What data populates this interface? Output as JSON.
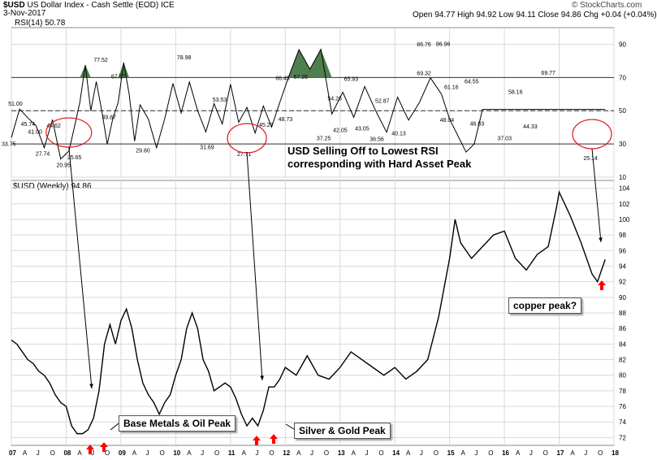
{
  "header": {
    "ticker": "$USD",
    "name": "US Dollar Index - Cash Settle (EOD)",
    "exchange": "ICE",
    "date": "3-Nov-2017",
    "quote": "Open 94.77  High 94.92  Low 94.11  Close 94.86  Chg +0.04 (+0.04%)",
    "watermark": "© StockCharts.com",
    "rsi_label": "RSI(14) 50.78",
    "price_label": "$USD (Weekly) 94.86"
  },
  "annotations": {
    "rsi_note_line1": "USD Selling Off to Lowest RSI",
    "rsi_note_line2": "corresponding with Hard Asset Peak",
    "base_metals": "Base Metals & Oil Peak",
    "silver_gold": "Silver & Gold Peak",
    "copper": "copper peak?"
  },
  "colors": {
    "price_line": "#000000",
    "rsi_line": "#000000",
    "overbought_fill": "#4f7f4f",
    "circle": "#e21c1c",
    "arrow_up": "#ff0000",
    "grid": "#d9d9d9"
  },
  "chart_data": [
    {
      "type": "line",
      "title": "RSI(14) 50.78",
      "ylim": [
        10,
        100
      ],
      "y_ticks": [
        10,
        30,
        50,
        70,
        90
      ],
      "reference_lines": [
        30,
        50,
        70
      ],
      "x": [
        2007.0,
        2007.15,
        2007.3,
        2007.45,
        2007.6,
        2007.75,
        2007.9,
        2008.05,
        2008.15,
        2008.25,
        2008.35,
        2008.45,
        2008.55,
        2008.65,
        2008.75,
        2008.85,
        2008.95,
        2009.05,
        2009.15,
        2009.25,
        2009.35,
        2009.5,
        2009.65,
        2009.8,
        2009.95,
        2010.1,
        2010.25,
        2010.4,
        2010.55,
        2010.7,
        2010.85,
        2011.0,
        2011.15,
        2011.3,
        2011.45,
        2011.6,
        2011.75,
        2011.9,
        2012.05,
        2012.25,
        2012.45,
        2012.65,
        2012.85,
        2013.05,
        2013.25,
        2013.45,
        2013.65,
        2013.85,
        2014.05,
        2014.25,
        2014.45,
        2014.65,
        2014.85,
        2015.0,
        2015.15,
        2015.3,
        2015.45,
        2015.6,
        2015.75,
        2015.9,
        2016.05,
        2016.25,
        2016.45,
        2016.65,
        2016.85,
        2017.0,
        2017.15,
        2017.3,
        2017.45,
        2017.6,
        2017.72,
        2017.84
      ],
      "y": [
        33.75,
        51.0,
        45.74,
        41.0,
        27.74,
        44.62,
        20.95,
        25.65,
        40.0,
        55.0,
        77.52,
        49.87,
        67.57,
        50.0,
        29.8,
        45.0,
        55.0,
        78.98,
        60.0,
        31.69,
        53.53,
        45.0,
        27.71,
        45.27,
        66.45,
        48.73,
        67.26,
        50.0,
        37.25,
        54.26,
        42.05,
        65.93,
        43.05,
        52.0,
        36.56,
        52.87,
        40.13,
        55.0,
        69.32,
        86.76,
        75.0,
        86.96,
        48.04,
        61.16,
        46.03,
        64.55,
        50.0,
        37.03,
        58.16,
        44.33,
        55.0,
        69.77,
        60.0,
        45.0,
        35.0,
        25.14,
        30.0,
        50.78,
        50.78,
        50.78,
        50.78,
        50.78,
        50.78,
        50.78,
        50.78,
        50.78,
        50.78,
        50.78,
        50.78,
        50.78,
        50.78,
        50.78
      ],
      "labels": [
        {
          "x": 2007.0,
          "v": "33.75"
        },
        {
          "x": 2007.12,
          "v": "51.00"
        },
        {
          "x": 2007.35,
          "v": "45.74"
        },
        {
          "x": 2007.48,
          "v": "41.00"
        },
        {
          "x": 2007.62,
          "v": "27.74"
        },
        {
          "x": 2007.82,
          "v": "44.62"
        },
        {
          "x": 2008.0,
          "v": "20.95"
        },
        {
          "x": 2008.2,
          "v": "25.65"
        },
        {
          "x": 2008.68,
          "v": "77.52"
        },
        {
          "x": 2008.83,
          "v": "49.87"
        },
        {
          "x": 2009.0,
          "v": "67.57"
        },
        {
          "x": 2009.45,
          "v": "29.80"
        },
        {
          "x": 2010.2,
          "v": "78.98"
        },
        {
          "x": 2010.62,
          "v": "31.69"
        },
        {
          "x": 2010.85,
          "v": "53.53"
        },
        {
          "x": 2011.3,
          "v": "27.71"
        },
        {
          "x": 2011.7,
          "v": "45.27"
        },
        {
          "x": 2012.0,
          "v": "66.45"
        },
        {
          "x": 2012.05,
          "v": "48.73"
        },
        {
          "x": 2012.33,
          "v": "67.26"
        },
        {
          "x": 2012.75,
          "v": "37.25"
        },
        {
          "x": 2012.95,
          "v": "54.26"
        },
        {
          "x": 2013.05,
          "v": "42.05"
        },
        {
          "x": 2013.25,
          "v": "65.93"
        },
        {
          "x": 2013.45,
          "v": "43.05"
        },
        {
          "x": 2013.82,
          "v": "52.87"
        },
        {
          "x": 2013.72,
          "v": "36.56"
        },
        {
          "x": 2014.12,
          "v": "40.13"
        },
        {
          "x": 2014.58,
          "v": "69.32"
        },
        {
          "x": 2014.58,
          "v": "86.76"
        },
        {
          "x": 2014.93,
          "v": "86.96"
        },
        {
          "x": 2015.08,
          "v": "61.16"
        },
        {
          "x": 2015.0,
          "v": "48.04"
        },
        {
          "x": 2015.45,
          "v": "64.55"
        },
        {
          "x": 2015.55,
          "v": "46.03"
        },
        {
          "x": 2016.25,
          "v": "58.16"
        },
        {
          "x": 2016.05,
          "v": "37.03"
        },
        {
          "x": 2016.52,
          "v": "44.33"
        },
        {
          "x": 2016.85,
          "v": "69.77"
        },
        {
          "x": 2017.62,
          "v": "25.14"
        }
      ]
    },
    {
      "type": "line",
      "title": "$USD (Weekly) 94.86",
      "ylim": [
        71,
        105
      ],
      "y_ticks": [
        72,
        74,
        76,
        78,
        80,
        82,
        84,
        86,
        88,
        90,
        92,
        94,
        96,
        98,
        100,
        102,
        104
      ],
      "x_ticks": [
        "07",
        "A",
        "J",
        "O",
        "08",
        "A",
        "J",
        "O",
        "09",
        "A",
        "J",
        "O",
        "10",
        "A",
        "J",
        "O",
        "11",
        "A",
        "J",
        "O",
        "12",
        "A",
        "J",
        "O",
        "13",
        "A",
        "J",
        "O",
        "14",
        "A",
        "J",
        "O",
        "15",
        "A",
        "J",
        "O",
        "16",
        "A",
        "J",
        "O",
        "17",
        "A",
        "J",
        "O",
        "18"
      ],
      "x": [
        2007.0,
        2007.1,
        2007.2,
        2007.3,
        2007.4,
        2007.5,
        2007.6,
        2007.7,
        2007.8,
        2007.9,
        2008.0,
        2008.1,
        2008.2,
        2008.3,
        2008.4,
        2008.5,
        2008.6,
        2008.7,
        2008.8,
        2008.9,
        2009.0,
        2009.1,
        2009.2,
        2009.3,
        2009.4,
        2009.5,
        2009.6,
        2009.7,
        2009.8,
        2009.9,
        2010.0,
        2010.1,
        2010.2,
        2010.3,
        2010.4,
        2010.5,
        2010.6,
        2010.7,
        2010.8,
        2010.9,
        2011.0,
        2011.1,
        2011.2,
        2011.3,
        2011.4,
        2011.5,
        2011.6,
        2011.7,
        2011.8,
        2011.9,
        2012.0,
        2012.2,
        2012.4,
        2012.6,
        2012.8,
        2013.0,
        2013.2,
        2013.4,
        2013.6,
        2013.8,
        2014.0,
        2014.2,
        2014.4,
        2014.6,
        2014.8,
        2015.0,
        2015.1,
        2015.2,
        2015.4,
        2015.6,
        2015.8,
        2016.0,
        2016.2,
        2016.4,
        2016.6,
        2016.8,
        2016.95,
        2017.0,
        2017.2,
        2017.4,
        2017.6,
        2017.7,
        2017.84
      ],
      "y": [
        84.5,
        84.0,
        83.0,
        82.0,
        81.5,
        80.5,
        80.0,
        79.0,
        77.5,
        76.5,
        76.0,
        73.5,
        72.5,
        72.5,
        73.0,
        74.5,
        78.0,
        84.0,
        86.5,
        84.0,
        87.0,
        88.5,
        86.0,
        82.0,
        79.0,
        77.5,
        76.5,
        75.0,
        76.5,
        77.5,
        80.0,
        82.0,
        86.0,
        88.0,
        86.0,
        82.0,
        80.5,
        78.0,
        78.5,
        79.0,
        78.5,
        77.0,
        75.0,
        73.5,
        74.5,
        73.5,
        75.5,
        78.5,
        78.5,
        79.5,
        81.0,
        80.0,
        82.5,
        80.0,
        79.5,
        81.0,
        83.0,
        82.0,
        81.0,
        80.0,
        81.0,
        79.5,
        80.5,
        82.0,
        87.5,
        95.0,
        100.0,
        97.0,
        95.0,
        96.5,
        98.0,
        98.5,
        95.0,
        93.5,
        95.5,
        96.5,
        101.5,
        103.5,
        100.5,
        97.0,
        93.0,
        92.0,
        94.86
      ]
    }
  ]
}
